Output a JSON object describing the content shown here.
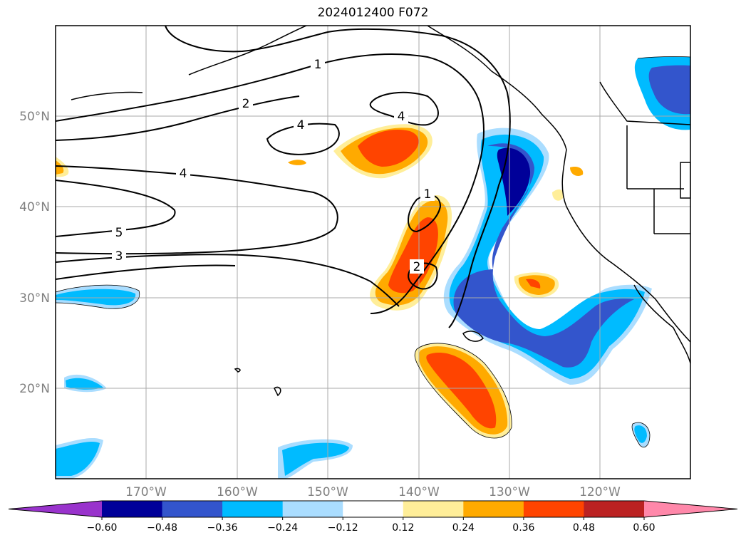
{
  "title": "2024012400 F072",
  "map": {
    "grid_lines": true,
    "lon_labels": [
      "170°W",
      "160°W",
      "150°W",
      "140°W",
      "130°W",
      "120°W"
    ],
    "lat_labels": [
      "50°N",
      "40°N",
      "30°N",
      "20°N"
    ],
    "contour_labels": [
      "1",
      "2",
      "4",
      "4",
      "4",
      "5",
      "3",
      "1",
      "2"
    ]
  },
  "colorbar": {
    "extend": "both",
    "colors": [
      "#9933cc",
      "#000099",
      "#3355cc",
      "#00bbff",
      "#aaddff",
      "#ffffff",
      "#ffee99",
      "#ffaa00",
      "#ff4400",
      "#bb2222",
      "#ff88aa"
    ],
    "tick_labels": [
      "−0.60",
      "−0.48",
      "−0.36",
      "−0.24",
      "−0.12",
      "0.12",
      "0.24",
      "0.36",
      "0.48",
      "0.60"
    ]
  }
}
